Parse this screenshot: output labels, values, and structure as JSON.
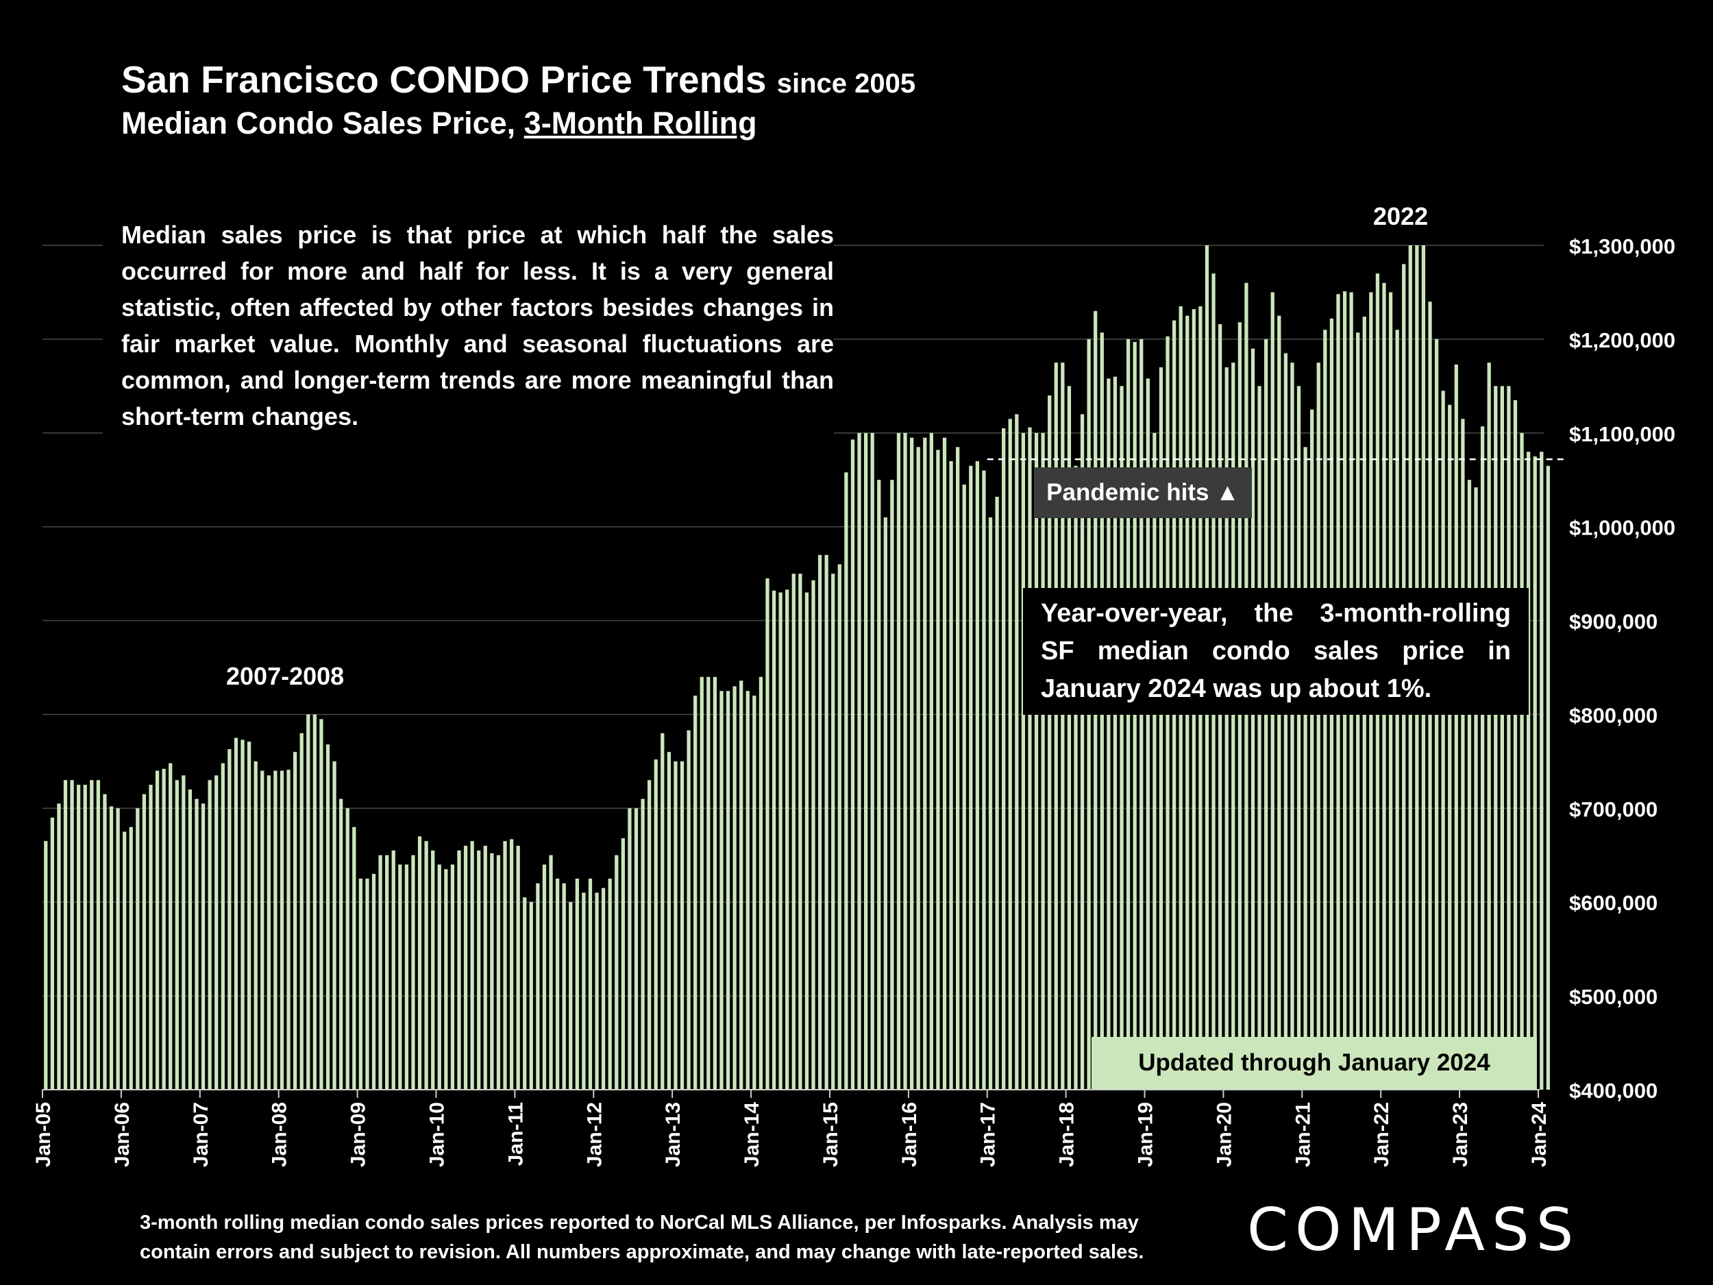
{
  "header": {
    "title_main": "San Francisco CONDO Price Trends",
    "title_small": "since 2005",
    "subtitle_prefix": "Median Condo Sales Price,",
    "subtitle_underlined": "3-Month Rolling"
  },
  "notes": {
    "description": "Median sales price is that price at which half the sales occurred for more and half for less. It is a very general statistic, often affected by other factors besides changes in fair market value. Monthly and seasonal fluctuations are common, and longer-term trends are more meaningful than short-term changes.",
    "yoy": "Year-over-year, the 3-month-rolling SF median condo sales price in January 2024 was up about 1%.",
    "pandemic": "Pandemic hits ▲",
    "updated": "Updated through January 2024",
    "footer": "3-month rolling median condo sales prices reported to NorCal MLS Alliance, per Infosparks. Analysis may contain errors and subject to revision. All numbers approximate, and may change with late-reported sales."
  },
  "logo": "COMPASS",
  "colors": {
    "bar": "#cbe6bb",
    "background": "#000000",
    "grid": "#4a4a4a",
    "pandemic_bg": "#3b3b3b"
  },
  "chart_data": {
    "type": "bar",
    "title": "San Francisco CONDO Price Trends since 2005",
    "subtitle": "Median Condo Sales Price, 3-Month Rolling",
    "x_ticks": [
      "Jan-05",
      "Jan-06",
      "Jan-07",
      "Jan-08",
      "Jan-09",
      "Jan-10",
      "Jan-11",
      "Jan-12",
      "Jan-13",
      "Jan-14",
      "Jan-15",
      "Jan-16",
      "Jan-17",
      "Jan-18",
      "Jan-19",
      "Jan-20",
      "Jan-21",
      "Jan-22",
      "Jan-23",
      "Jan-24"
    ],
    "y_ticks": [
      "$400,000",
      "$500,000",
      "$600,000",
      "$700,000",
      "$800,000",
      "$900,000",
      "$1,000,000",
      "$1,100,000",
      "$1,200,000",
      "$1,300,000"
    ],
    "ylim": [
      400000,
      1300000
    ],
    "y_axis_position": "right",
    "grid": true,
    "start_month": "Jan-05",
    "end_month": "Jan-24",
    "annotations": [
      "2007-2008",
      "2022"
    ],
    "reference_line": {
      "style": "dashed",
      "value": 1072000,
      "from": "Jan-17",
      "to": "Jan-24"
    },
    "series": [
      {
        "values": [
          665000,
          690000,
          705000,
          730000,
          730000,
          725000,
          725000,
          730000,
          730000,
          715000,
          702000,
          700000,
          675000,
          680000,
          700000,
          715000,
          725000,
          740000,
          742000,
          748000,
          730000,
          735000,
          720000,
          710000,
          705000,
          730000,
          735000,
          748000,
          763000,
          775000,
          773000,
          771000,
          750000,
          740000,
          735000,
          740000,
          740000,
          741000,
          760000,
          780000,
          800000,
          800000,
          795000,
          768000,
          750000,
          710000,
          700000,
          680000,
          625000,
          625000,
          630000,
          650000,
          650000,
          655000,
          640000,
          640000,
          650000,
          670000,
          665000,
          655000,
          640000,
          635000,
          640000,
          655000,
          660000,
          665000,
          655000,
          660000,
          652000,
          650000,
          665000,
          667000,
          660000,
          605000,
          600000,
          620000,
          640000,
          650000,
          625000,
          620000,
          600000,
          625000,
          610000,
          625000,
          610000,
          615000,
          625000,
          650000,
          668000,
          700000,
          700000,
          710000,
          730000,
          752000,
          780000,
          760000,
          750000,
          750000,
          783000,
          820000,
          840000,
          840000,
          840000,
          825000,
          825000,
          830000,
          836000,
          825000,
          820000,
          840000,
          945000,
          932000,
          930000,
          933000,
          950000,
          950000,
          930000,
          943000,
          970000,
          970000,
          950000,
          960000,
          1058000,
          1093000,
          1100000,
          1100000,
          1100000,
          1050000,
          1010000,
          1050000,
          1100000,
          1100000,
          1095000,
          1085000,
          1095000,
          1100000,
          1082000,
          1095000,
          1070000,
          1085000,
          1045000,
          1065000,
          1070000,
          1060000,
          1010000,
          1032000,
          1105000,
          1115000,
          1120000,
          1100000,
          1106000,
          1100000,
          1100000,
          1140000,
          1175000,
          1175000,
          1150000,
          1065000,
          1120000,
          1200000,
          1230000,
          1207000,
          1158000,
          1160000,
          1150000,
          1200000,
          1197000,
          1200000,
          1158000,
          1100000,
          1170000,
          1203000,
          1220000,
          1235000,
          1225000,
          1232000,
          1235000,
          1300000,
          1270000,
          1216000,
          1170000,
          1175000,
          1218000,
          1260000,
          1190000,
          1150000,
          1200000,
          1250000,
          1225000,
          1185000,
          1175000,
          1150000,
          1085000,
          1125000,
          1175000,
          1210000,
          1222000,
          1248000,
          1251000,
          1250000,
          1207000,
          1224000,
          1250000,
          1270000,
          1260000,
          1250000,
          1210000,
          1280000,
          1300000,
          1300000,
          1300000,
          1240000,
          1200000,
          1145000,
          1130000,
          1173000,
          1115000,
          1050000,
          1042000,
          1107000,
          1175000,
          1150000,
          1150000,
          1150000,
          1135000,
          1100000,
          1080000,
          1075000,
          1080000,
          1065000
        ]
      }
    ]
  }
}
